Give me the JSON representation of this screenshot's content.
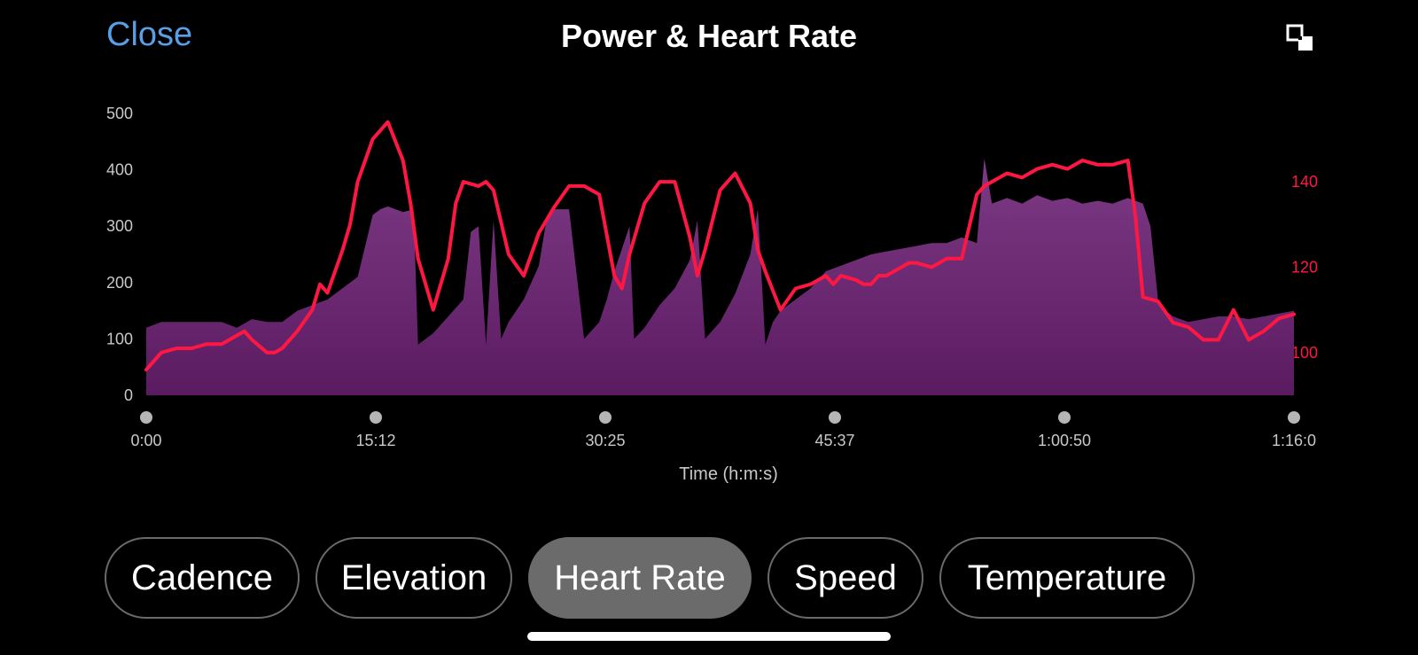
{
  "header": {
    "close_label": "Close",
    "title": "Power & Heart Rate",
    "fullscreen_icon": "fullscreen-toggle-icon"
  },
  "colors": {
    "power_fill_top": "#7e3a86",
    "power_fill_bottom": "#5b1b60",
    "heart_rate_line": "#ff1744",
    "right_axis_text": "#ff1744",
    "link": "#5a9fe6",
    "chip_active": "#6b6b6b"
  },
  "chart_data": {
    "type": "area",
    "title": "Power & Heart Rate",
    "xlabel": "Time (h:m:s)",
    "x_tick_labels": [
      "0:00",
      "15:12",
      "30:25",
      "45:37",
      "1:00:50",
      "1:16:0"
    ],
    "xlim_minutes": [
      0,
      76
    ],
    "y_left": {
      "ticks": [
        0,
        100,
        200,
        300,
        400,
        500
      ],
      "lim": [
        0,
        500
      ]
    },
    "y_right": {
      "ticks": [
        100,
        120,
        140
      ],
      "lim": [
        90,
        156
      ]
    },
    "series": [
      {
        "kind": "area",
        "axis": "left",
        "x_minutes": [
          0,
          1,
          2,
          3,
          4,
          5,
          6,
          7,
          8,
          9,
          10,
          11,
          12,
          13,
          14,
          15,
          15.5,
          16,
          17,
          17.7,
          18,
          19,
          20,
          21,
          21.5,
          22,
          22.5,
          23,
          23.5,
          24,
          25,
          26,
          26.5,
          27,
          28,
          29,
          30,
          30.5,
          31,
          32,
          32.3,
          33,
          34,
          35,
          36,
          36.5,
          37,
          38,
          39,
          40,
          40.5,
          41,
          41.5,
          42,
          43,
          44,
          45,
          46,
          47,
          48,
          49,
          50,
          51,
          52,
          53,
          54,
          55,
          55.5,
          56,
          57,
          58,
          59,
          60,
          61,
          62,
          63,
          64,
          65,
          66,
          66.5,
          67,
          67.5,
          68,
          69,
          70,
          71,
          72,
          73,
          74,
          75,
          76
        ],
        "values": [
          120,
          130,
          130,
          130,
          130,
          130,
          120,
          135,
          130,
          130,
          150,
          160,
          170,
          190,
          210,
          320,
          330,
          335,
          325,
          330,
          90,
          110,
          140,
          170,
          290,
          300,
          90,
          310,
          100,
          130,
          170,
          230,
          310,
          330,
          330,
          100,
          130,
          170,
          220,
          300,
          100,
          120,
          160,
          190,
          240,
          310,
          100,
          130,
          180,
          250,
          330,
          90,
          130,
          150,
          170,
          190,
          220,
          230,
          240,
          250,
          255,
          260,
          265,
          270,
          270,
          280,
          270,
          420,
          340,
          350,
          340,
          355,
          345,
          350,
          340,
          345,
          340,
          350,
          340,
          300,
          170,
          150,
          140,
          130,
          135,
          140,
          140,
          135,
          140,
          145,
          150
        ]
      },
      {
        "kind": "line",
        "axis": "right",
        "x_minutes": [
          0,
          0.5,
          1,
          2,
          3,
          4,
          5,
          6,
          6.5,
          7,
          8,
          8.5,
          9,
          10,
          11,
          11.5,
          12,
          13,
          13.5,
          14,
          15,
          16,
          17,
          17.5,
          18,
          19,
          20,
          20.5,
          21,
          22,
          22.5,
          23,
          24,
          25,
          26,
          27,
          28,
          29,
          30,
          31,
          31.5,
          32,
          33,
          34,
          35,
          36,
          36.5,
          37,
          38,
          39,
          40,
          40.5,
          41,
          42,
          43,
          44,
          45,
          45.5,
          46,
          47,
          47.5,
          48,
          48.5,
          49,
          50,
          50.5,
          51,
          52,
          53,
          54,
          55,
          55.5,
          56,
          57,
          58,
          59,
          60,
          61,
          62,
          63,
          64,
          65,
          65.5,
          66,
          67,
          68,
          69,
          70,
          71,
          72,
          73,
          74,
          75,
          76
        ],
        "values": [
          96,
          98,
          100,
          101,
          101,
          102,
          102,
          104,
          105,
          103,
          100,
          100,
          101,
          105,
          110,
          116,
          114,
          124,
          130,
          140,
          150,
          154,
          145,
          135,
          122,
          110,
          122,
          135,
          140,
          139,
          140,
          138,
          123,
          118,
          128,
          134,
          139,
          139,
          137,
          118,
          115,
          123,
          135,
          140,
          140,
          127,
          118,
          124,
          138,
          142,
          135,
          124,
          119,
          110,
          115,
          116,
          118,
          116,
          118,
          117,
          116,
          116,
          118,
          118,
          120,
          121,
          121,
          120,
          122,
          122,
          137,
          139,
          140,
          142,
          141,
          143,
          144,
          143,
          145,
          144,
          144,
          145,
          132,
          113,
          112,
          107,
          106,
          103,
          103,
          110,
          103,
          105,
          108,
          109
        ]
      }
    ]
  },
  "tabs": [
    {
      "label": "Cadence",
      "active": false
    },
    {
      "label": "Elevation",
      "active": false
    },
    {
      "label": "Heart Rate",
      "active": true
    },
    {
      "label": "Speed",
      "active": false
    },
    {
      "label": "Temperature",
      "active": false
    }
  ]
}
